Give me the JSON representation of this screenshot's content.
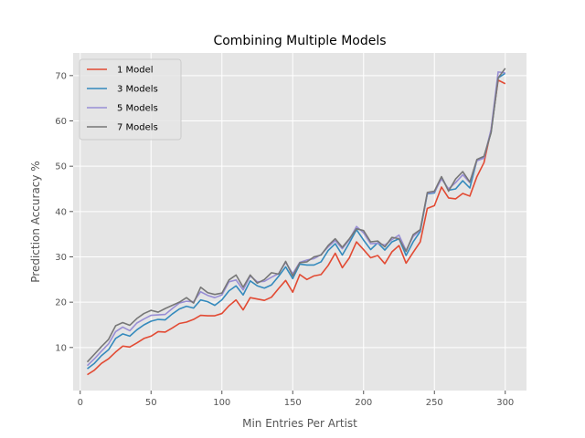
{
  "chart_data": {
    "type": "line",
    "title": "Combining Multiple Models",
    "xlabel": "Min Entries Per Artist",
    "ylabel": "Prediction Accuracy %",
    "xlim": [
      -5,
      315
    ],
    "ylim": [
      0.5,
      75
    ],
    "xticks": [
      0,
      50,
      100,
      150,
      200,
      250,
      300
    ],
    "yticks": [
      10,
      20,
      30,
      40,
      50,
      60,
      70
    ],
    "grid": true,
    "legend_position": "top-left",
    "style": "ggplot",
    "x": [
      5,
      10,
      15,
      20,
      25,
      30,
      35,
      40,
      45,
      50,
      55,
      60,
      65,
      70,
      75,
      80,
      85,
      90,
      95,
      100,
      105,
      110,
      115,
      120,
      125,
      130,
      135,
      140,
      145,
      150,
      155,
      160,
      165,
      170,
      175,
      180,
      185,
      190,
      195,
      200,
      205,
      210,
      215,
      220,
      225,
      230,
      235,
      240,
      245,
      250,
      255,
      260,
      265,
      270,
      275,
      280,
      285,
      290,
      295,
      300
    ],
    "series": [
      {
        "name": "1 Model",
        "color": "#E24A33",
        "values": [
          4.0,
          5.0,
          6.5,
          7.5,
          9.0,
          10.3,
          10.1,
          11.0,
          12.0,
          12.5,
          13.5,
          13.4,
          14.3,
          15.3,
          15.6,
          16.2,
          17.1,
          17.0,
          17.0,
          17.5,
          19.2,
          20.5,
          18.3,
          21.0,
          20.7,
          20.4,
          21.1,
          23.0,
          24.8,
          22.2,
          26.1,
          25.0,
          25.8,
          26.1,
          28.1,
          30.8,
          27.6,
          29.8,
          33.3,
          31.6,
          29.8,
          30.3,
          28.5,
          31.1,
          32.5,
          28.6,
          31.0,
          33.3,
          40.7,
          41.3,
          45.4,
          43.0,
          42.8,
          44.0,
          43.4,
          47.7,
          50.8,
          58.0,
          69.0,
          68.2
        ]
      },
      {
        "name": "3 Models",
        "color": "#348ABD",
        "values": [
          5.3,
          6.5,
          8.2,
          9.5,
          12.0,
          13.0,
          12.5,
          13.9,
          15.0,
          15.8,
          16.2,
          16.1,
          17.4,
          18.5,
          19.1,
          18.7,
          20.5,
          20.1,
          19.3,
          20.5,
          22.5,
          23.6,
          21.6,
          24.7,
          23.6,
          23.1,
          23.8,
          25.7,
          27.8,
          25.2,
          28.4,
          28.2,
          28.2,
          28.9,
          31.4,
          32.9,
          30.4,
          33.1,
          36.0,
          33.7,
          31.6,
          33.1,
          31.5,
          33.3,
          34.0,
          30.3,
          33.3,
          35.6,
          43.9,
          44.1,
          47.6,
          44.7,
          45.0,
          46.8,
          45.2,
          51.3,
          52.0,
          57.5,
          69.5,
          70.5
        ]
      },
      {
        "name": "5 Models",
        "color": "#988ED5",
        "values": [
          6.0,
          7.5,
          9.2,
          10.8,
          13.5,
          14.5,
          13.7,
          15.4,
          16.3,
          17.1,
          17.2,
          17.3,
          18.6,
          19.8,
          20.2,
          20.1,
          22.3,
          21.5,
          21.0,
          21.6,
          24.5,
          24.9,
          22.7,
          25.8,
          24.5,
          24.6,
          25.5,
          26.3,
          28.8,
          26.3,
          28.8,
          29.3,
          29.6,
          30.5,
          32.2,
          33.6,
          31.8,
          33.8,
          36.7,
          35.3,
          32.9,
          33.0,
          32.6,
          33.8,
          34.8,
          31.4,
          34.5,
          35.9,
          44.0,
          44.3,
          47.2,
          45.0,
          46.4,
          48.1,
          46.4,
          51.2,
          51.8,
          58.1,
          70.8,
          70.6
        ]
      },
      {
        "name": "7 Models",
        "color": "#777777",
        "values": [
          6.8,
          8.5,
          10.2,
          11.8,
          14.8,
          15.5,
          14.9,
          16.4,
          17.5,
          18.2,
          17.8,
          18.6,
          19.3,
          20.0,
          21.0,
          19.8,
          23.3,
          22.1,
          21.7,
          22.0,
          24.9,
          26.0,
          23.3,
          26.0,
          24.2,
          25.0,
          26.5,
          26.2,
          29.0,
          25.8,
          28.7,
          28.9,
          30.0,
          30.4,
          32.5,
          34.0,
          32.1,
          34.0,
          36.2,
          35.8,
          33.3,
          33.5,
          32.2,
          34.3,
          34.0,
          31.2,
          34.9,
          36.0,
          44.2,
          44.5,
          47.7,
          44.5,
          47.2,
          48.8,
          46.5,
          51.5,
          52.2,
          57.4,
          69.5,
          71.6
        ]
      }
    ]
  }
}
